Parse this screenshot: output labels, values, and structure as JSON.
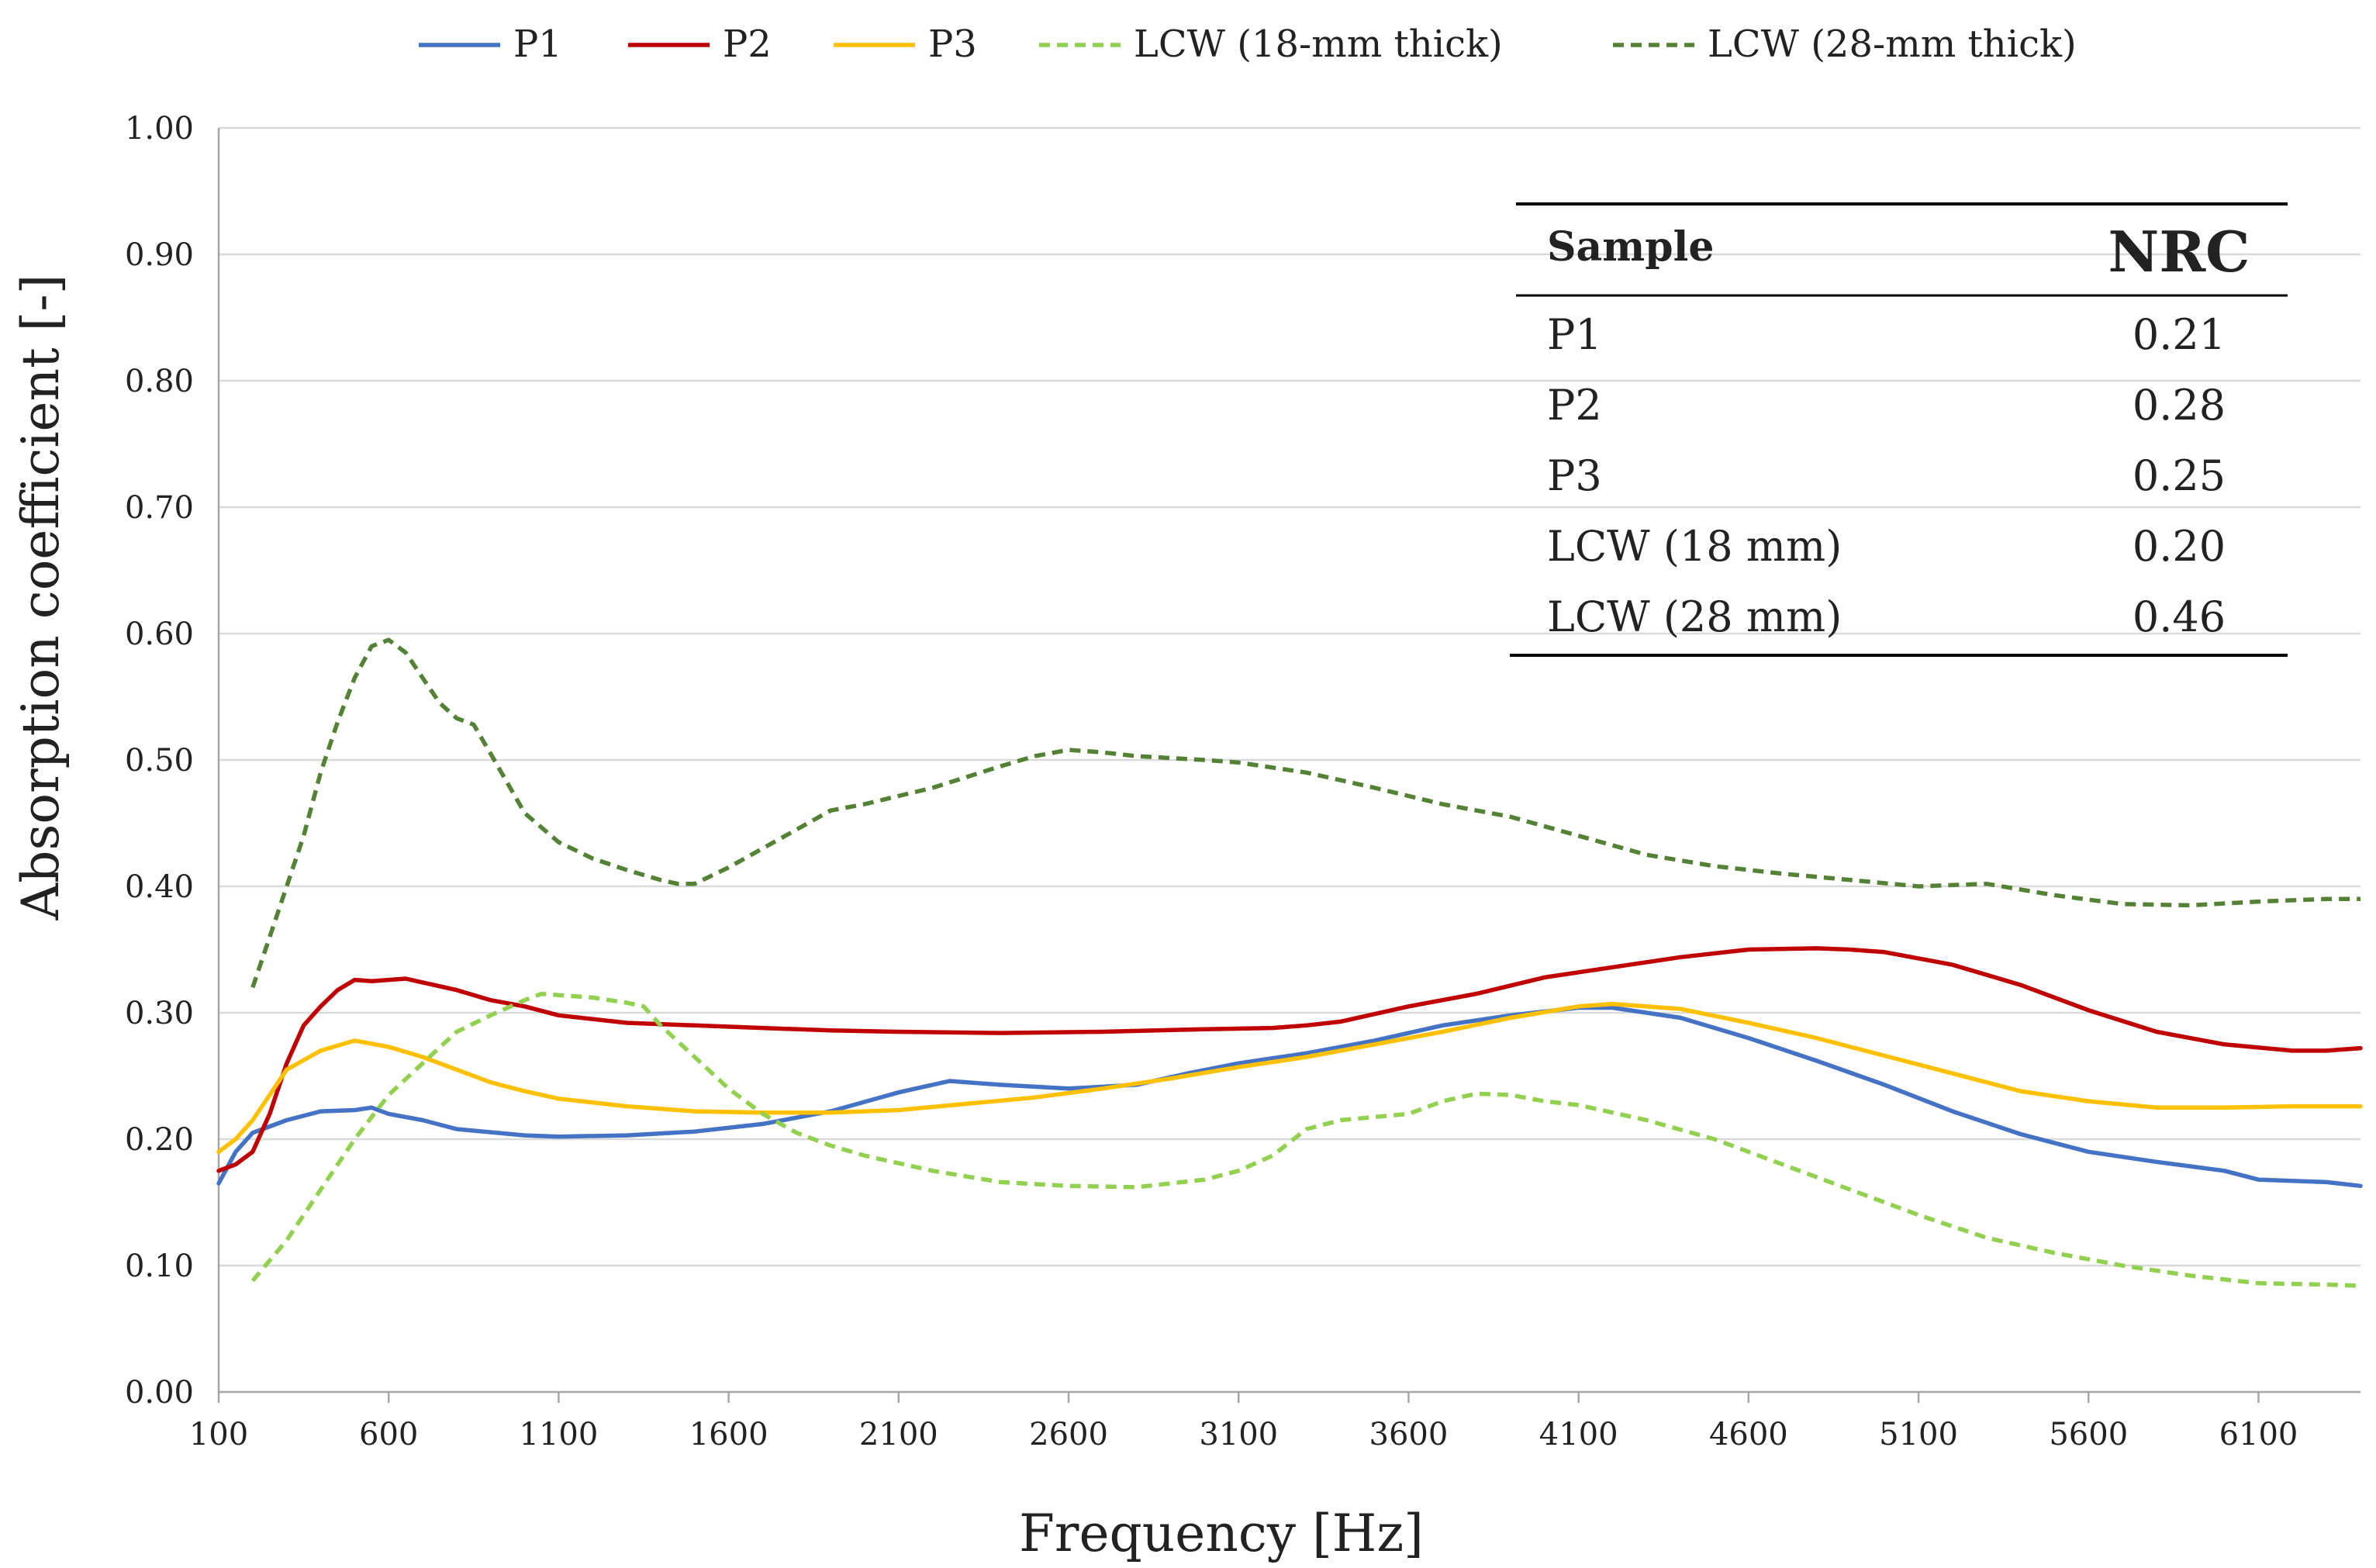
{
  "chart_data": {
    "type": "line",
    "title": "",
    "xlabel": "Frequency [Hz]",
    "ylabel": "Absorption coefficient [-]",
    "xlim": [
      100,
      6400
    ],
    "ylim": [
      0,
      1
    ],
    "x_ticks": [
      100,
      600,
      1100,
      1600,
      2100,
      2600,
      3100,
      3600,
      4100,
      4600,
      5100,
      5600,
      6100
    ],
    "x_tick_labels": [
      "100",
      "600",
      "1100",
      "1600",
      "2100",
      "2600",
      "3100",
      "3600",
      "4100",
      "4600",
      "5100",
      "5600",
      "6100"
    ],
    "y_ticks": [
      0,
      0.1,
      0.2,
      0.3,
      0.4,
      0.5,
      0.6,
      0.7,
      0.8,
      0.9,
      1.0
    ],
    "y_tick_labels": [
      "0.00",
      "0.10",
      "0.20",
      "0.30",
      "0.40",
      "0.50",
      "0.60",
      "0.70",
      "0.80",
      "0.90",
      "1.00"
    ],
    "grid": true,
    "legend_position": "top",
    "series": [
      {
        "name": "P1",
        "color": "#4472C4",
        "dashed": false,
        "x": [
          100,
          150,
          200,
          300,
          400,
          500,
          550,
          600,
          700,
          800,
          1000,
          1100,
          1300,
          1500,
          1700,
          1900,
          2100,
          2250,
          2400,
          2600,
          2800,
          2950,
          3100,
          3300,
          3500,
          3700,
          3900,
          4100,
          4200,
          4400,
          4600,
          4800,
          5000,
          5200,
          5400,
          5600,
          5800,
          6000,
          6100,
          6300,
          6400
        ],
        "y": [
          0.165,
          0.19,
          0.205,
          0.215,
          0.222,
          0.223,
          0.225,
          0.22,
          0.215,
          0.208,
          0.203,
          0.202,
          0.203,
          0.206,
          0.212,
          0.222,
          0.237,
          0.246,
          0.243,
          0.24,
          0.243,
          0.252,
          0.26,
          0.268,
          0.278,
          0.29,
          0.298,
          0.304,
          0.304,
          0.296,
          0.28,
          0.262,
          0.243,
          0.222,
          0.204,
          0.19,
          0.182,
          0.175,
          0.168,
          0.166,
          0.163
        ]
      },
      {
        "name": "P2",
        "color": "#C00000",
        "dashed": false,
        "x": [
          100,
          150,
          200,
          250,
          300,
          350,
          400,
          450,
          500,
          550,
          600,
          650,
          700,
          800,
          900,
          1000,
          1100,
          1300,
          1500,
          1700,
          1900,
          2100,
          2400,
          2700,
          3000,
          3200,
          3300,
          3400,
          3600,
          3800,
          4000,
          4200,
          4400,
          4600,
          4800,
          4900,
          5000,
          5200,
          5400,
          5600,
          5800,
          6000,
          6200,
          6300,
          6400
        ],
        "y": [
          0.175,
          0.18,
          0.19,
          0.22,
          0.26,
          0.29,
          0.305,
          0.318,
          0.326,
          0.325,
          0.326,
          0.327,
          0.324,
          0.318,
          0.31,
          0.305,
          0.298,
          0.292,
          0.29,
          0.288,
          0.286,
          0.285,
          0.284,
          0.285,
          0.287,
          0.288,
          0.29,
          0.293,
          0.305,
          0.315,
          0.328,
          0.336,
          0.344,
          0.35,
          0.351,
          0.35,
          0.348,
          0.338,
          0.322,
          0.302,
          0.285,
          0.275,
          0.27,
          0.27,
          0.272
        ]
      },
      {
        "name": "P3",
        "color": "#FFC000",
        "dashed": false,
        "x": [
          100,
          150,
          200,
          250,
          300,
          400,
          500,
          600,
          700,
          800,
          900,
          1000,
          1100,
          1300,
          1500,
          1700,
          1900,
          2100,
          2300,
          2500,
          2700,
          2900,
          3100,
          3300,
          3500,
          3700,
          3900,
          4100,
          4200,
          4400,
          4600,
          4800,
          5000,
          5200,
          5400,
          5600,
          5800,
          6000,
          6200,
          6400
        ],
        "y": [
          0.19,
          0.2,
          0.215,
          0.235,
          0.255,
          0.27,
          0.278,
          0.273,
          0.265,
          0.255,
          0.245,
          0.238,
          0.232,
          0.226,
          0.222,
          0.221,
          0.221,
          0.223,
          0.228,
          0.233,
          0.24,
          0.248,
          0.257,
          0.265,
          0.275,
          0.285,
          0.296,
          0.305,
          0.307,
          0.303,
          0.292,
          0.28,
          0.266,
          0.252,
          0.238,
          0.23,
          0.225,
          0.225,
          0.226,
          0.226
        ]
      },
      {
        "name": "LCW (18-mm thick)",
        "color": "#92D050",
        "dashed": true,
        "x": [
          200,
          300,
          400,
          500,
          600,
          700,
          800,
          900,
          1000,
          1050,
          1100,
          1200,
          1300,
          1350,
          1400,
          1500,
          1600,
          1700,
          1800,
          1900,
          2000,
          2200,
          2400,
          2600,
          2800,
          3000,
          3100,
          3200,
          3300,
          3400,
          3600,
          3700,
          3800,
          3900,
          4000,
          4100,
          4300,
          4500,
          4700,
          4900,
          5100,
          5300,
          5500,
          5700,
          5900,
          6100,
          6300,
          6400
        ],
        "y": [
          0.088,
          0.12,
          0.16,
          0.2,
          0.235,
          0.26,
          0.285,
          0.298,
          0.31,
          0.315,
          0.314,
          0.312,
          0.308,
          0.305,
          0.29,
          0.265,
          0.24,
          0.22,
          0.205,
          0.195,
          0.187,
          0.175,
          0.166,
          0.163,
          0.162,
          0.168,
          0.175,
          0.187,
          0.208,
          0.215,
          0.22,
          0.23,
          0.236,
          0.235,
          0.23,
          0.227,
          0.215,
          0.2,
          0.18,
          0.16,
          0.14,
          0.122,
          0.11,
          0.1,
          0.092,
          0.086,
          0.085,
          0.084
        ]
      },
      {
        "name": "LCW (28-mm thick)",
        "color": "#548235",
        "dashed": true,
        "x": [
          200,
          250,
          300,
          350,
          400,
          450,
          500,
          550,
          600,
          650,
          700,
          750,
          800,
          850,
          900,
          1000,
          1100,
          1200,
          1300,
          1400,
          1450,
          1500,
          1600,
          1700,
          1800,
          1900,
          2000,
          2200,
          2400,
          2500,
          2600,
          2700,
          2800,
          3000,
          3100,
          3300,
          3500,
          3700,
          3900,
          4100,
          4300,
          4500,
          4700,
          4900,
          5100,
          5300,
          5500,
          5700,
          5900,
          6100,
          6300,
          6400
        ],
        "y": [
          0.32,
          0.36,
          0.4,
          0.44,
          0.49,
          0.53,
          0.565,
          0.59,
          0.595,
          0.585,
          0.565,
          0.545,
          0.533,
          0.528,
          0.505,
          0.458,
          0.435,
          0.422,
          0.413,
          0.405,
          0.402,
          0.402,
          0.415,
          0.43,
          0.445,
          0.46,
          0.465,
          0.478,
          0.495,
          0.503,
          0.508,
          0.506,
          0.503,
          0.5,
          0.498,
          0.49,
          0.478,
          0.465,
          0.455,
          0.44,
          0.425,
          0.416,
          0.41,
          0.405,
          0.4,
          0.402,
          0.393,
          0.386,
          0.385,
          0.388,
          0.39,
          0.39
        ]
      }
    ],
    "nrc_table": {
      "header_sample": "Sample",
      "header_nrc": "NRC",
      "rows": [
        {
          "sample": "P1",
          "nrc": "0.21"
        },
        {
          "sample": "P2",
          "nrc": "0.28"
        },
        {
          "sample": "P3",
          "nrc": "0.25"
        },
        {
          "sample": "LCW (18 mm)",
          "nrc": "0.20"
        },
        {
          "sample": "LCW (28 mm)",
          "nrc": "0.46"
        }
      ]
    }
  }
}
